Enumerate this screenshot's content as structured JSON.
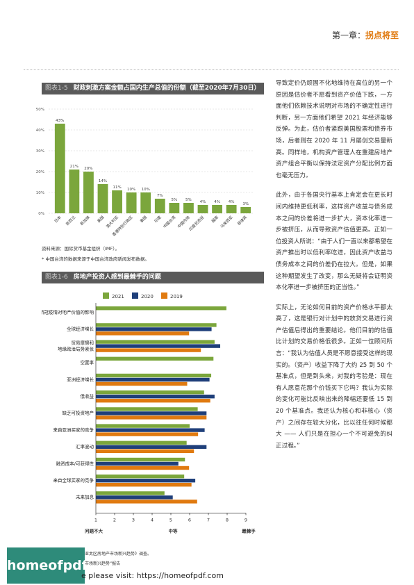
{
  "header": {
    "chapter_label": "第一章：",
    "chapter_title": "拐点将至"
  },
  "figure5": {
    "number": "图表1-5",
    "title": "财政刺激方案金额占国内生产总值的份额（截至2020年7月30日）",
    "source": "资料来源：国际货币基金组织（IMF）。",
    "footnote": "* 中国台湾的数据来源于中国台湾政府新闻发布数据。"
  },
  "figure6": {
    "number": "图表1-6",
    "title": "房地产投资人感到最棘手的问题",
    "scale_labels": {
      "low": "问题不大",
      "mid": "中等",
      "high": "最棘手"
    }
  },
  "chart_data": [
    {
      "type": "bar",
      "categories": [
        "日本",
        "新西兰",
        "新加坡",
        "美国",
        "澳大利亚",
        "香港特别行政区",
        "泰国",
        "印度",
        "中国台湾",
        "中国内地",
        "印度尼西亚",
        "越南",
        "马来西亚",
        "菲律宾"
      ],
      "values": [
        43,
        21,
        20,
        14,
        11,
        10,
        10,
        7,
        5,
        5,
        4,
        4,
        4,
        3
      ],
      "data_labels": [
        "43%",
        "21%",
        "20%",
        "14%",
        "11%",
        "10%",
        "10%",
        "7%",
        "5%",
        "5%",
        "4%",
        "4%",
        "4%",
        "3%"
      ],
      "ylim": [
        0,
        50
      ],
      "yticks": [
        "0%",
        "10%",
        "20%",
        "30%",
        "40%",
        "50%"
      ],
      "color": "#7ba63c",
      "grid": true
    },
    {
      "type": "bar",
      "orientation": "horizontal",
      "categories": [
        "新冠疫情对地产价值的影响",
        "全球经济增长",
        "贸易摩擦和\n地缘政治局势紧张",
        "空置率",
        "亚洲经济增长",
        "低收益",
        "缺乏可投资地产",
        "来自亚洲买家的竞争",
        "汇率波动",
        "融资成本/可获得性",
        "来自全球买家的竞争",
        "未来加息"
      ],
      "series": [
        {
          "name": "2021",
          "color": "#7ba63c",
          "values": [
            7.96,
            7.43,
            7.33,
            7.27,
            7.15,
            6.77,
            6.43,
            6.0,
            5.84,
            5.75,
            5.71,
            4.66
          ]
        },
        {
          "name": "2020",
          "color": "#1f3f7a",
          "values": [
            null,
            7.17,
            7.63,
            null,
            7.06,
            7.33,
            6.9,
            6.8,
            6.9,
            5.4,
            6.3,
            5.1
          ]
        },
        {
          "name": "2019",
          "color": "#e07a10",
          "values": [
            null,
            5.97,
            6.6,
            null,
            5.87,
            7.1,
            6.9,
            6.45,
            6.23,
            5.97,
            6.1,
            6.4
          ]
        }
      ],
      "xlim": [
        1,
        9
      ],
      "xticks": [
        "1",
        "2",
        "3",
        "4",
        "5",
        "6",
        "7",
        "8",
        "9"
      ],
      "legend": "top"
    }
  ],
  "body_text": [
    "导致定价仍顽固不化地维持在高位的另一个原因是估价者不愿看到资产价值下跌，一方面他们依赖技术说明对市场的不确定性进行判断，另一方面他们希望 2021 年经济能够反弹。为此，估价者紧跟美国股票和债券市场，后者则在 2020 年 11 月屡创交易量新高。同样地，机构资产管理人在重建房地产资产组合平衡以保持法定资产分配比例方面也毫无压力。",
    "此外，由于各国央行基本上肯定会在更长时间内维持更低利率，这样资产收益与债务成本之间的价差将进一步扩大，资本化率进一步被挤压，从而导致资产估值更高。正如一位投资人所说：“由于人们一直以来都希望在资产推出时以低利率吃进，因此资产收益与债务成本之间的价差仍在拉大。但是，如果这种期望发生了改变，那么无疑将会证明资本化率进一步被挤压的正当性。”",
    "实际上，无论如何目前的资产价格水平都太高了，这是银行对计划中的放贷交易进行资产估值后得出的重要结论。他们目前的估值比计划的交易价格低很多。正如一位顾问所言：“我认为估值人员是不愿意接受这样的现实的。（资产）收益下降了大约 25 到 50 个基准点，但是到头来，对我的考验是：现在有人愿意花那个价钱买下它吗？我认为实际的变化可能比反映出来的降幅还要低 15 到 20 个基准点。我还认为核心和非核心（资产）之间存在较大分化，比以往任何时候都大 —— 人们只是在担心一个不可避免的纠正过程。”"
  ],
  "footer": {
    "logo_text": "homeofpdf.com",
    "line1": "亚太区房地产市场新兴趋势》调查。",
    "line2": "市场新兴趋势”报告",
    "line3": "e please visit: https://homeofpdf.com"
  }
}
